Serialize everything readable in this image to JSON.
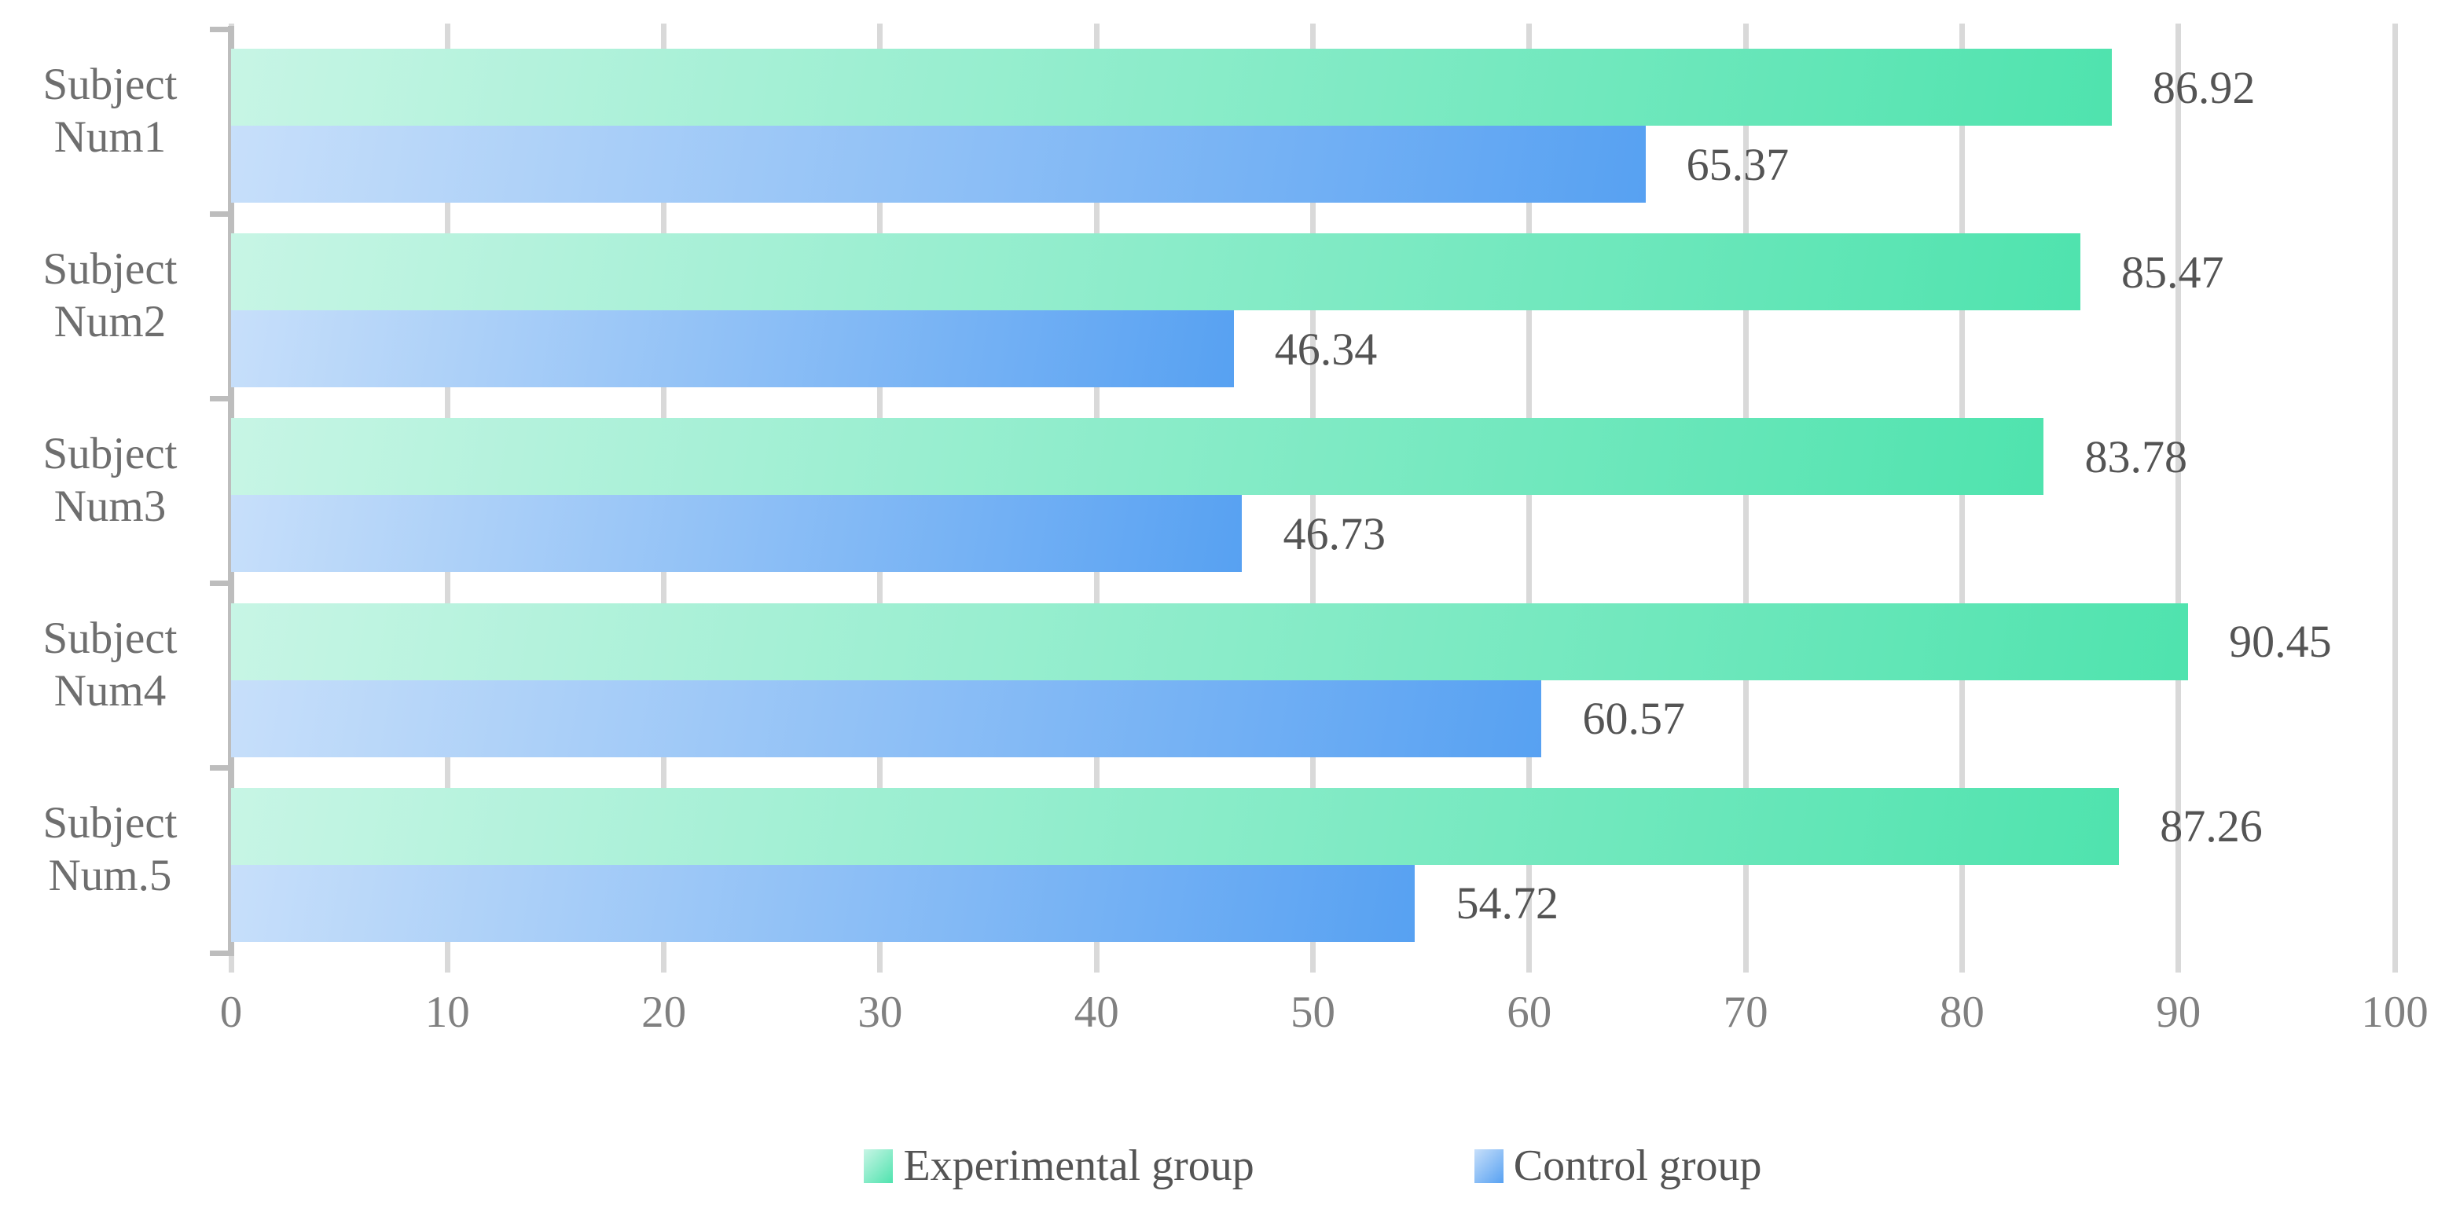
{
  "chart_data": {
    "type": "bar",
    "orientation": "horizontal",
    "title": "",
    "xlabel": "",
    "ylabel": "",
    "categories": [
      [
        "Subject",
        "Num1"
      ],
      [
        "Subject",
        "Num2"
      ],
      [
        "Subject",
        "Num3"
      ],
      [
        "Subject",
        "Num4"
      ],
      [
        "Subject",
        "Num.5"
      ]
    ],
    "series": [
      {
        "name": "Experimental group",
        "values": [
          86.92,
          85.47,
          83.78,
          90.45,
          87.26
        ],
        "labels": [
          "86.92",
          "85.47",
          "83.78",
          "90.45",
          "87.26"
        ],
        "color_start": "#C7F5E5",
        "color_end": "#4FE3AE"
      },
      {
        "name": "Control group",
        "values": [
          65.37,
          46.34,
          46.73,
          60.57,
          54.72
        ],
        "labels": [
          "65.37",
          "46.34",
          "46.73",
          "60.57",
          "54.72"
        ],
        "color_start": "#C7DFFA",
        "color_end": "#57A1F2"
      }
    ],
    "xlim": [
      0,
      100
    ],
    "x_ticks": [
      "0",
      "10",
      "20",
      "30",
      "40",
      "50",
      "60",
      "70",
      "80",
      "90",
      "100"
    ],
    "grid": true,
    "legend_position": "bottom"
  },
  "colors": {
    "background": "#FFFFFF",
    "gridline": "#D9D9D9",
    "axis": "#BDBDBD",
    "tick_label": "#808080",
    "category_label": "#6E6E6E",
    "data_label": "#545454",
    "legend_label": "#545454"
  }
}
